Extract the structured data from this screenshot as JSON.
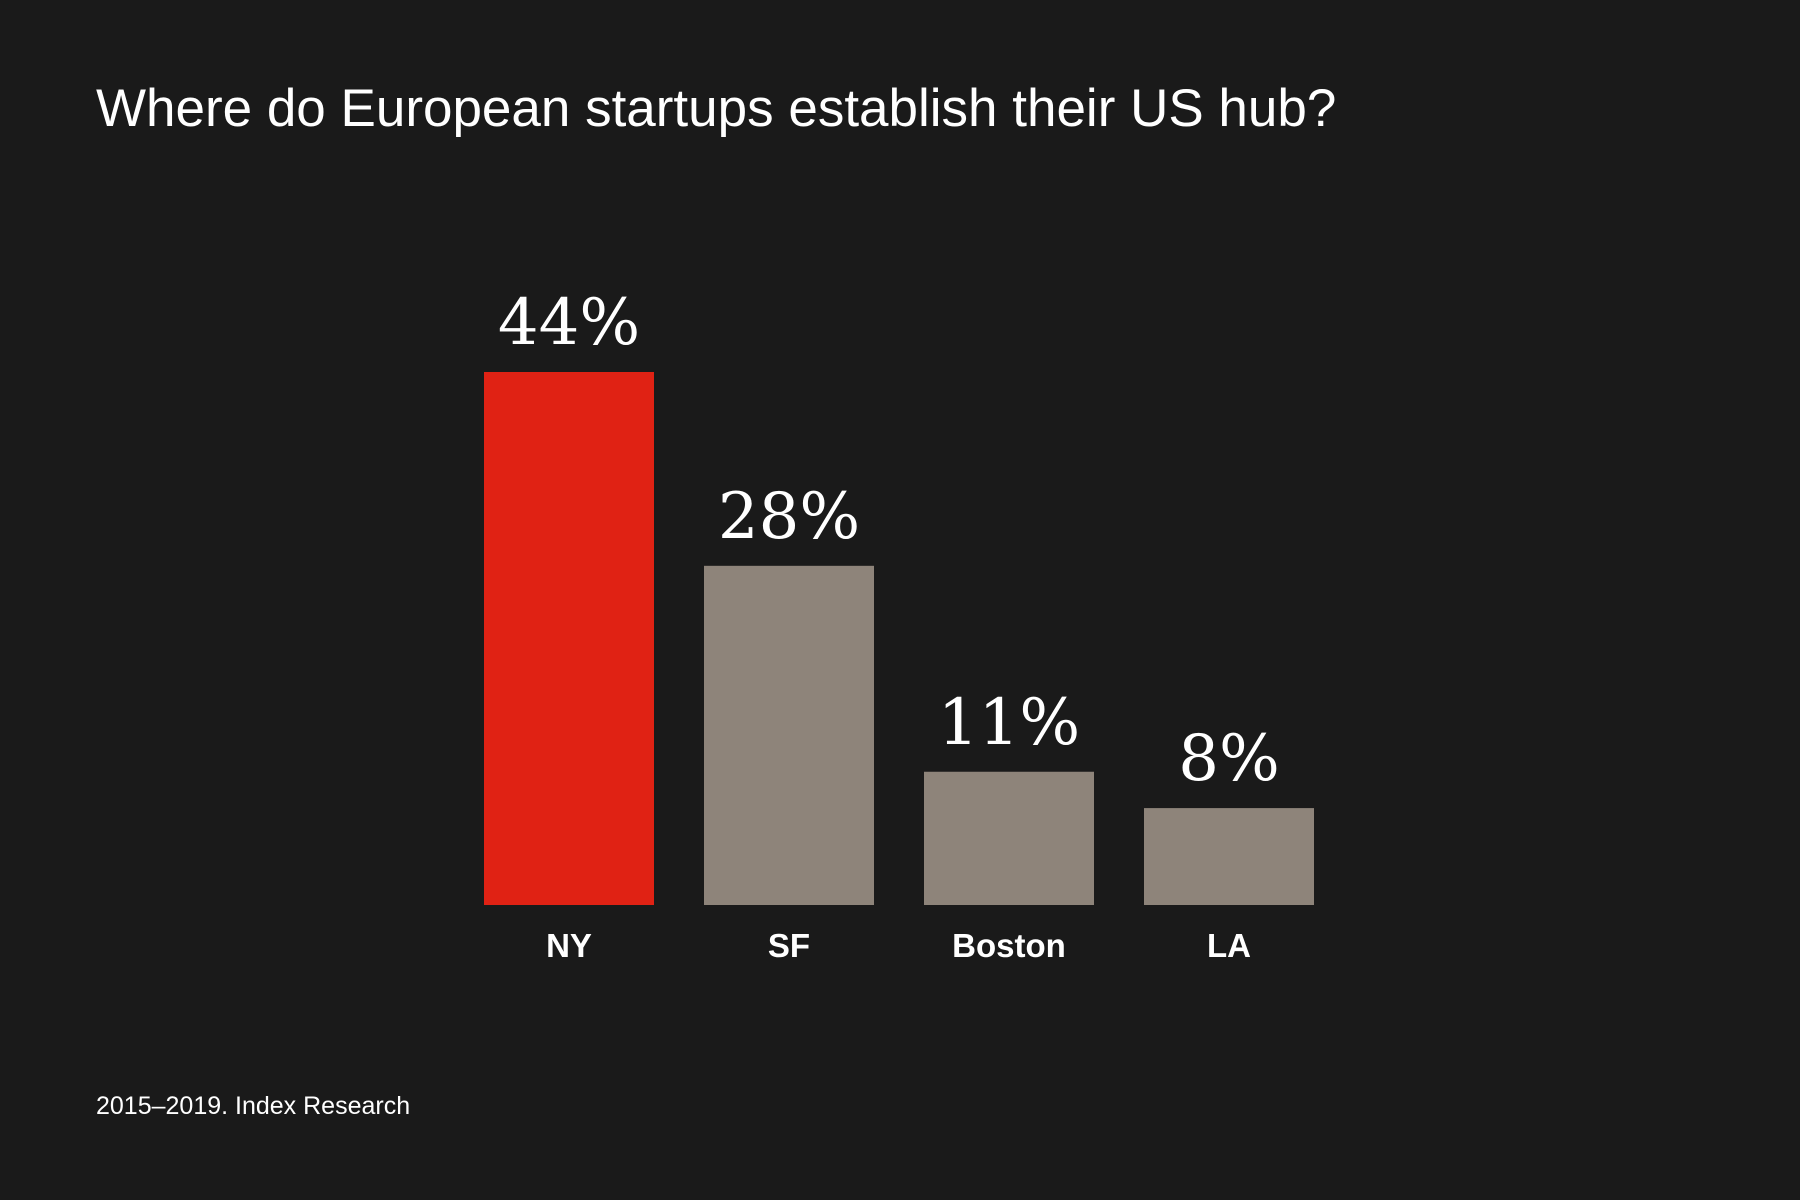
{
  "chart_data": {
    "type": "bar",
    "title": "Where do European startups establish their US hub?",
    "source": "2015–2019. Index Research",
    "categories": [
      "NY",
      "SF",
      "Boston",
      "LA"
    ],
    "values": [
      44,
      28,
      11,
      8
    ],
    "value_labels": [
      "44%",
      "28%",
      "11%",
      "8%"
    ],
    "bar_colors": [
      "#e02214",
      "#8e847a",
      "#8e847a",
      "#8e847a"
    ],
    "ylim": [
      0,
      44
    ],
    "grid": false,
    "xlabel": "",
    "ylabel": ""
  },
  "colors": {
    "background": "#1a1a1a",
    "text": "#ffffff",
    "highlight": "#e02214",
    "bar": "#8e847a"
  }
}
